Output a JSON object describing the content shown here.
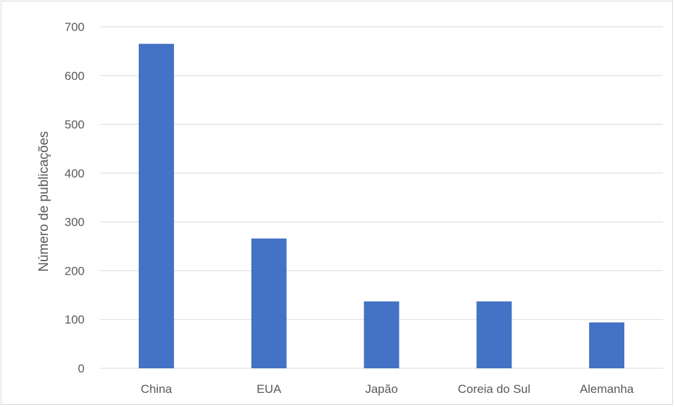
{
  "chart_data": {
    "type": "bar",
    "title": "",
    "xlabel": "",
    "ylabel": "Número de publicações",
    "categories": [
      "China",
      "EUA",
      "Japão",
      "Coreia do Sul",
      "Alemanha"
    ],
    "values": [
      665,
      266,
      137,
      137,
      94
    ],
    "ylim": [
      0,
      700
    ],
    "yticks": [
      0,
      100,
      200,
      300,
      400,
      500,
      600,
      700
    ],
    "grid": true,
    "legend": "none",
    "colors": {
      "bar": "#4472c4",
      "grid": "#d9d9d9",
      "text": "#595959"
    }
  }
}
